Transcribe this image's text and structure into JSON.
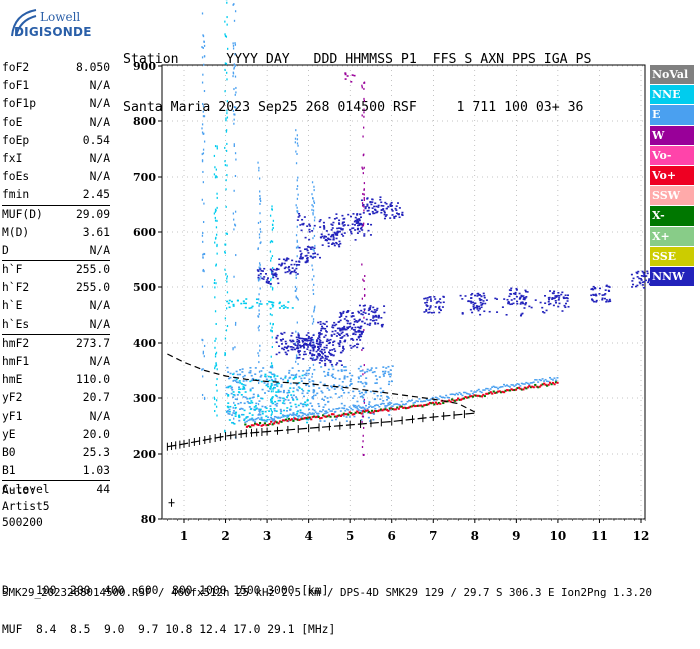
{
  "logo": {
    "line1": "Lowell",
    "line2": "DIGISONDE",
    "color": "#2a5fa8"
  },
  "header": {
    "labels": "Station      YYYY DAY   DDD HHMMSS P1  FFS S AXN PPS IGA PS",
    "values": "Santa Maria 2023 Sep25 268 014500 RSF     1 711 100 03+ 36"
  },
  "params": [
    [
      {
        "label": "foF2",
        "value": "8.050"
      },
      {
        "label": "foF1",
        "value": "N/A"
      },
      {
        "label": "foF1p",
        "value": "N/A"
      },
      {
        "label": "foE",
        "value": "N/A"
      },
      {
        "label": "foEp",
        "value": "0.54"
      },
      {
        "label": "fxI",
        "value": "N/A"
      },
      {
        "label": "foEs",
        "value": "N/A"
      },
      {
        "label": "fmin",
        "value": "2.45"
      }
    ],
    [
      {
        "label": "MUF(D)",
        "value": "29.09"
      },
      {
        "label": "M(D)",
        "value": "3.61"
      },
      {
        "label": "D",
        "value": "N/A"
      }
    ],
    [
      {
        "label": "h`F",
        "value": "255.0"
      },
      {
        "label": "h`F2",
        "value": "255.0"
      },
      {
        "label": "h`E",
        "value": "N/A"
      },
      {
        "label": "h`Es",
        "value": "N/A"
      }
    ],
    [
      {
        "label": "hmF2",
        "value": "273.7"
      },
      {
        "label": "hmF1",
        "value": "N/A"
      },
      {
        "label": "hmE",
        "value": "110.0"
      },
      {
        "label": "yF2",
        "value": "20.7"
      },
      {
        "label": "yF1",
        "value": "N/A"
      },
      {
        "label": "yE",
        "value": "20.0"
      },
      {
        "label": "B0",
        "value": "25.3"
      },
      {
        "label": "B1",
        "value": "1.03"
      }
    ],
    [
      {
        "label": "C-level",
        "value": "44"
      }
    ]
  ],
  "auto": {
    "line1": "Auto:",
    "line2": "Artist5",
    "line3": "500200"
  },
  "legend": [
    {
      "label": "NoVal",
      "color": "#808080"
    },
    {
      "label": "NNE",
      "color": "#00ccee"
    },
    {
      "label": "E",
      "color": "#4aa0f0"
    },
    {
      "label": "W",
      "color": "#990099"
    },
    {
      "label": "Vo-",
      "color": "#ff44aa"
    },
    {
      "label": "Vo+",
      "color": "#ee0022"
    },
    {
      "label": "SSW",
      "color": "#ffaaaa"
    },
    {
      "label": "X-",
      "color": "#007700"
    },
    {
      "label": "X+",
      "color": "#88cc88"
    },
    {
      "label": "SSE",
      "color": "#cccc00"
    },
    {
      "label": "NNW",
      "color": "#2222bb"
    }
  ],
  "bottom_table": {
    "d_row": "D    100  200  400  600  800 1000 1500 3000 [km]",
    "muf_row": "MUF  8.4  8.5  9.0  9.7 10.8 12.4 17.0 29.1 [MHz]"
  },
  "footer": "SMK29_2023268014500.RSF / 460fx512h 25 kHz 2.5 km / DPS-4D SMK29 129 / 29.7 S 306.3 E Ion2Png 1.3.20",
  "chart_data": {
    "type": "scatter",
    "x_ticks": [
      1,
      2,
      3,
      4,
      5,
      6,
      7,
      8,
      9,
      10,
      11,
      12
    ],
    "y_ticks": [
      80,
      200,
      300,
      400,
      500,
      600,
      700,
      800,
      900
    ],
    "xlim": [
      0.6,
      12.1
    ],
    "ylim": [
      80,
      900
    ],
    "ylim_note_on_scale": "nonlinear",
    "grid": true,
    "legend_position": "right",
    "trace_xplus": {
      "x": [
        0.6,
        1.0,
        1.5,
        2.0,
        2.5,
        3.0,
        4.0,
        5.0,
        6.0,
        7.0,
        8.0
      ],
      "y": [
        213,
        218,
        225,
        232,
        237,
        240,
        246,
        252,
        258,
        266,
        273
      ]
    },
    "profile_curve": {
      "x": [
        0.6,
        1.0,
        1.5,
        2.0,
        2.5,
        3.0,
        3.5,
        4.0,
        5.0,
        6.0,
        7.0,
        7.6,
        8.0
      ],
      "y": [
        380,
        365,
        350,
        340,
        334,
        330,
        328,
        326,
        318,
        308,
        298,
        290,
        275
      ]
    },
    "o_trace": {
      "x": [
        2.45,
        3.0,
        3.5,
        4.0,
        4.5,
        5.0,
        5.5,
        6.0,
        6.5,
        7.0,
        7.5,
        8.0,
        8.5,
        9.0,
        9.5,
        10.0
      ],
      "y": [
        252,
        256,
        262,
        266,
        270,
        274,
        278,
        282,
        287,
        292,
        298,
        305,
        312,
        318,
        324,
        330
      ]
    },
    "upper_cluster_w": {
      "x": [
        3.0,
        3.5,
        4.0,
        4.5,
        5.0,
        5.5,
        6.0,
        7.0,
        8.0,
        9.0,
        10.0,
        11.0,
        12.0
      ],
      "y": [
        520,
        540,
        560,
        590,
        620,
        650,
        640,
        470,
        475,
        485,
        480,
        490,
        515
      ]
    },
    "mid_cluster": {
      "x": [
        4.0,
        4.5,
        5.0,
        5.5,
        3.5,
        4.0,
        4.5,
        5.0
      ],
      "y": [
        400,
        420,
        440,
        450,
        400,
        390,
        380,
        410
      ]
    }
  }
}
